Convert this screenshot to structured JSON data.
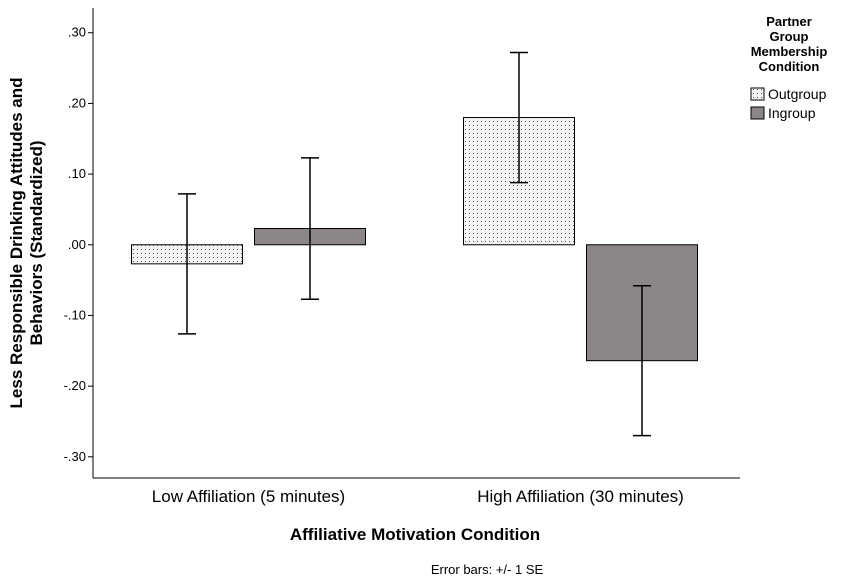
{
  "chart_data": {
    "type": "bar",
    "categories": [
      "Low Affiliation (5 minutes)",
      "High Affiliation (30 minutes)"
    ],
    "series": [
      {
        "name": "Outgroup",
        "values": [
          -0.027,
          0.18
        ],
        "error": [
          0.099,
          0.092
        ],
        "color": "#f2f2f2",
        "pattern": "dotted"
      },
      {
        "name": "Ingroup",
        "values": [
          0.023,
          -0.164
        ],
        "error": [
          0.1,
          0.106
        ],
        "color": "#8c8686",
        "pattern": "solid"
      }
    ],
    "xlabel": "Affiliative Motivation Condition",
    "ylabel_lines": [
      "Less Responsible Drinking Attitudes and",
      "Behaviors (Standardized)"
    ],
    "ylim": [
      -0.33,
      0.335
    ],
    "yticks": [
      0.3,
      0.2,
      0.1,
      0.0,
      -0.1,
      -0.2,
      -0.3
    ],
    "ytick_labels": [
      ".30",
      ".20",
      ".10",
      ".00",
      "-.10",
      "-.20",
      "-.30"
    ],
    "legend_title_lines": [
      "Partner",
      "Group",
      "Membership",
      "Condition"
    ],
    "legend_position": "top-right",
    "footnote": "Error bars: +/- 1 SE",
    "grid": false
  }
}
